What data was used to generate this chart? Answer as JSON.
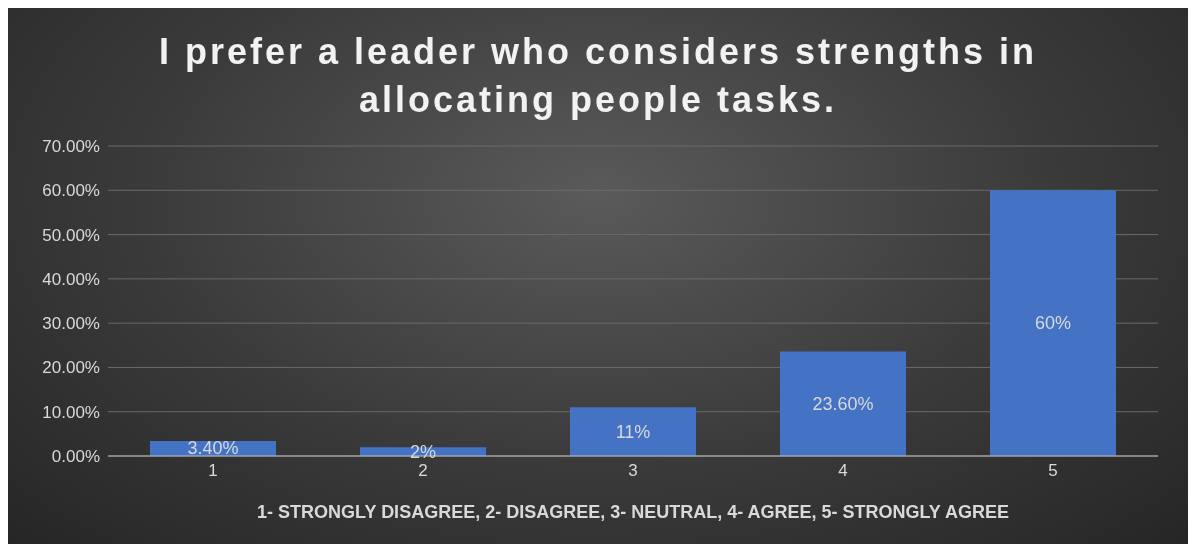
{
  "chart_data": {
    "type": "bar",
    "title": "I prefer a leader who considers strengths in allocating people tasks.",
    "xlabel": "1- STRONGLY DISAGREE, 2- DISAGREE, 3- NEUTRAL, 4- AGREE, 5- STRONGLY AGREE",
    "categories": [
      "1",
      "2",
      "3",
      "4",
      "5"
    ],
    "values": [
      3.4,
      2,
      11,
      23.6,
      60
    ],
    "color": "#4472c4",
    "value_labels": [
      "3.40%",
      "2%",
      "11%",
      "23.60%",
      "60%"
    ],
    "ylim": [
      0,
      70
    ],
    "yticks": [
      {
        "value": 0,
        "label": "0.00%"
      },
      {
        "value": 10,
        "label": "10.00%"
      },
      {
        "value": 20,
        "label": "20.00%"
      },
      {
        "value": 30,
        "label": "30.00%"
      },
      {
        "value": 40,
        "label": "40.00%"
      },
      {
        "value": 50,
        "label": "50.00%"
      },
      {
        "value": 60,
        "label": "60.00%"
      },
      {
        "value": 70,
        "label": "70.00%"
      }
    ],
    "grid": "y",
    "legend": false
  }
}
